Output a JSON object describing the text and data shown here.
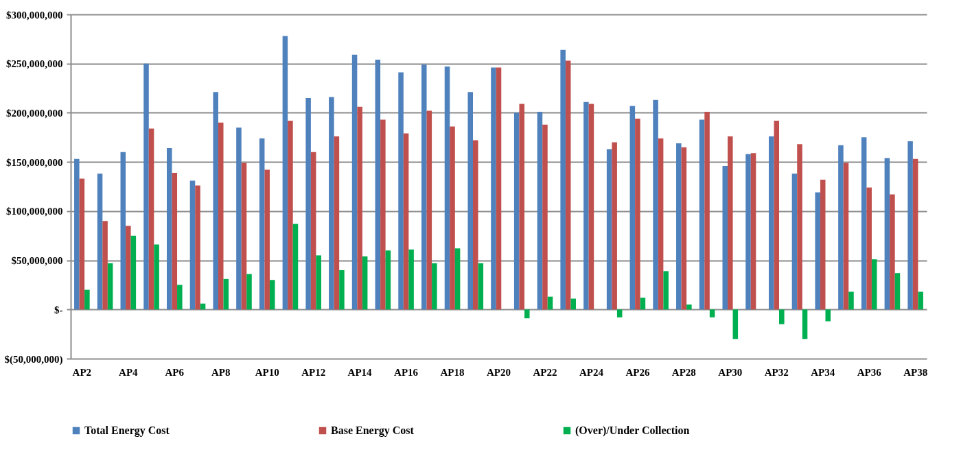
{
  "chart_data": {
    "type": "bar",
    "categories": [
      "AP2",
      null,
      "AP4",
      null,
      "AP6",
      null,
      "AP8",
      null,
      "AP10",
      null,
      "AP12",
      null,
      "AP14",
      null,
      "AP16",
      null,
      "AP18",
      null,
      "AP20",
      null,
      "AP22",
      null,
      "AP24",
      null,
      "AP26",
      null,
      "AP28",
      null,
      "AP30",
      null,
      "AP32",
      null,
      "AP34",
      null,
      "AP36",
      null,
      "AP38"
    ],
    "series": [
      {
        "name": "Total Energy Cost",
        "color": "#4f81bd",
        "values": [
          153000000,
          138000000,
          160000000,
          250000000,
          164000000,
          131000000,
          221000000,
          185000000,
          174000000,
          278000000,
          215000000,
          216000000,
          259000000,
          254000000,
          241000000,
          249000000,
          247000000,
          221000000,
          246000000,
          200000000,
          201000000,
          264000000,
          211000000,
          163000000,
          207000000,
          213000000,
          169000000,
          193000000,
          146000000,
          158000000,
          176000000,
          138000000,
          119000000,
          167000000,
          175000000,
          154000000,
          171000000
        ]
      },
      {
        "name": "Base Energy Cost",
        "color": "#c0504d",
        "values": [
          133000000,
          90000000,
          85000000,
          184000000,
          139000000,
          126000000,
          190000000,
          149000000,
          142000000,
          192000000,
          160000000,
          176000000,
          206000000,
          193000000,
          179000000,
          202000000,
          186000000,
          172000000,
          246000000,
          209000000,
          188000000,
          253000000,
          209000000,
          170000000,
          194000000,
          174000000,
          165000000,
          201000000,
          176000000,
          159000000,
          192000000,
          168000000,
          132000000,
          149000000,
          124000000,
          117000000,
          153000000
        ]
      },
      {
        "name": "(Over)/Under Collection",
        "color": "#00b050",
        "values": [
          20000000,
          47000000,
          75000000,
          66000000,
          25000000,
          6000000,
          31000000,
          36000000,
          30000000,
          87000000,
          55000000,
          40000000,
          54000000,
          60000000,
          61000000,
          47000000,
          62000000,
          47000000,
          0,
          -9000000,
          13000000,
          11000000,
          0,
          -8000000,
          12000000,
          39000000,
          5000000,
          -8000000,
          -30000000,
          0,
          -15000000,
          -30000000,
          -12000000,
          18000000,
          51000000,
          37000000,
          18000000
        ]
      }
    ],
    "ylim": [
      -50000000,
      300000000
    ],
    "yticks": [
      {
        "value": -50000000,
        "label": "$(50,000,000)"
      },
      {
        "value": 0,
        "label": "$-"
      },
      {
        "value": 50000000,
        "label": "$50,000,000"
      },
      {
        "value": 100000000,
        "label": "$100,000,000"
      },
      {
        "value": 150000000,
        "label": "$150,000,000"
      },
      {
        "value": 200000000,
        "label": "$200,000,000"
      },
      {
        "value": 250000000,
        "label": "$250,000,000"
      },
      {
        "value": 300000000,
        "label": "$300,000,000"
      }
    ],
    "grid": "y",
    "legend": "bottom"
  }
}
